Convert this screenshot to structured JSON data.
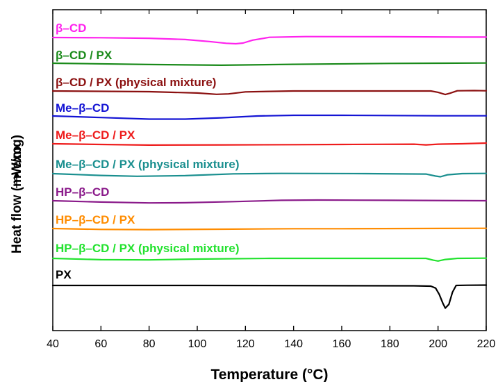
{
  "chart_data": {
    "type": "line",
    "xlabel": "Temperature (°C)",
    "ylabel": "Heat flow (mW/mg)",
    "exo_label": "exo",
    "xlim": [
      40,
      220
    ],
    "xticks": [
      40,
      60,
      80,
      100,
      120,
      140,
      160,
      180,
      200,
      220
    ],
    "grid": false,
    "legend": "inline labels above each curve",
    "series": [
      {
        "name": "β–CD",
        "color": "#ff22ee",
        "points": [
          [
            40,
            0
          ],
          [
            60,
            -0.1
          ],
          [
            80,
            -0.35
          ],
          [
            95,
            -0.9
          ],
          [
            105,
            -1.8
          ],
          [
            112,
            -2.6
          ],
          [
            116,
            -2.8
          ],
          [
            119,
            -2.5
          ],
          [
            123,
            -1.2
          ],
          [
            130,
            0.1
          ],
          [
            145,
            0.4
          ],
          [
            180,
            0.35
          ],
          [
            210,
            0.2
          ],
          [
            220,
            0.2
          ]
        ]
      },
      {
        "name": "β–CD / PX",
        "color": "#1a8a1a",
        "points": [
          [
            40,
            0
          ],
          [
            80,
            -0.6
          ],
          [
            110,
            -0.9
          ],
          [
            140,
            -0.5
          ],
          [
            180,
            -0.1
          ],
          [
            200,
            0
          ],
          [
            220,
            0.1
          ]
        ]
      },
      {
        "name": "β–CD / PX (physical mixture)",
        "color": "#8b1010",
        "points": [
          [
            40,
            0
          ],
          [
            80,
            -0.3
          ],
          [
            100,
            -0.9
          ],
          [
            108,
            -1.5
          ],
          [
            113,
            -1.3
          ],
          [
            120,
            -0.4
          ],
          [
            140,
            0
          ],
          [
            180,
            0
          ],
          [
            197,
            0
          ],
          [
            200,
            -0.6
          ],
          [
            203,
            -1.6
          ],
          [
            205,
            -1.0
          ],
          [
            208,
            0.1
          ],
          [
            215,
            0.2
          ],
          [
            220,
            0.1
          ]
        ]
      },
      {
        "name": "Me–β–CD",
        "color": "#1414d4",
        "points": [
          [
            40,
            0
          ],
          [
            60,
            -0.7
          ],
          [
            80,
            -1.4
          ],
          [
            95,
            -1.4
          ],
          [
            110,
            -0.8
          ],
          [
            125,
            0
          ],
          [
            140,
            0.3
          ],
          [
            160,
            0.3
          ],
          [
            200,
            0.1
          ],
          [
            220,
            0.1
          ]
        ]
      },
      {
        "name": "Me–β–CD / PX",
        "color": "#ee1c1c",
        "points": [
          [
            40,
            0
          ],
          [
            60,
            -0.3
          ],
          [
            80,
            -0.6
          ],
          [
            110,
            -0.5
          ],
          [
            140,
            -0.4
          ],
          [
            160,
            -0.3
          ],
          [
            190,
            -0.2
          ],
          [
            195,
            -0.5
          ],
          [
            200,
            -0.2
          ],
          [
            210,
            0
          ],
          [
            220,
            0.3
          ]
        ]
      },
      {
        "name": "Me–β–CD / PX (physical mixture)",
        "color": "#1a8f8f",
        "points": [
          [
            40,
            0
          ],
          [
            60,
            -0.8
          ],
          [
            75,
            -1.2
          ],
          [
            95,
            -0.9
          ],
          [
            115,
            -0.1
          ],
          [
            135,
            0.1
          ],
          [
            170,
            0
          ],
          [
            195,
            -0.2
          ],
          [
            199,
            -1.1
          ],
          [
            201,
            -1.4
          ],
          [
            204,
            -0.5
          ],
          [
            210,
            0
          ],
          [
            220,
            0.1
          ]
        ]
      },
      {
        "name": "HP–β–CD",
        "color": "#8a1a8a",
        "points": [
          [
            40,
            0
          ],
          [
            60,
            -0.6
          ],
          [
            80,
            -1.0
          ],
          [
            95,
            -0.9
          ],
          [
            115,
            -0.4
          ],
          [
            135,
            0.2
          ],
          [
            150,
            0.3
          ],
          [
            180,
            0.2
          ],
          [
            220,
            0
          ]
        ]
      },
      {
        "name": "HP–β–CD / PX",
        "color": "#ff8c00",
        "points": [
          [
            40,
            0
          ],
          [
            60,
            -0.4
          ],
          [
            80,
            -0.5
          ],
          [
            110,
            -0.3
          ],
          [
            140,
            -0.1
          ],
          [
            160,
            -0.1
          ],
          [
            190,
            0
          ],
          [
            220,
            0.1
          ]
        ]
      },
      {
        "name": "HP–β–CD / PX (physical mixture)",
        "color": "#22e22e",
        "points": [
          [
            40,
            0
          ],
          [
            60,
            -0.6
          ],
          [
            80,
            -0.7
          ],
          [
            100,
            -0.3
          ],
          [
            130,
            0
          ],
          [
            170,
            0
          ],
          [
            195,
            0
          ],
          [
            198,
            -0.8
          ],
          [
            200,
            -1.2
          ],
          [
            203,
            -0.5
          ],
          [
            208,
            0
          ],
          [
            220,
            0.1
          ]
        ]
      },
      {
        "name": "PX",
        "color": "#000000",
        "points": [
          [
            40,
            0
          ],
          [
            100,
            0
          ],
          [
            190,
            -0.15
          ],
          [
            197,
            -0.3
          ],
          [
            199,
            -1.2
          ],
          [
            200.5,
            -4
          ],
          [
            202,
            -8
          ],
          [
            203,
            -10.2
          ],
          [
            204.5,
            -8.5
          ],
          [
            206,
            -3
          ],
          [
            207.5,
            0
          ],
          [
            212,
            0.1
          ],
          [
            220,
            0.15
          ]
        ]
      }
    ]
  }
}
